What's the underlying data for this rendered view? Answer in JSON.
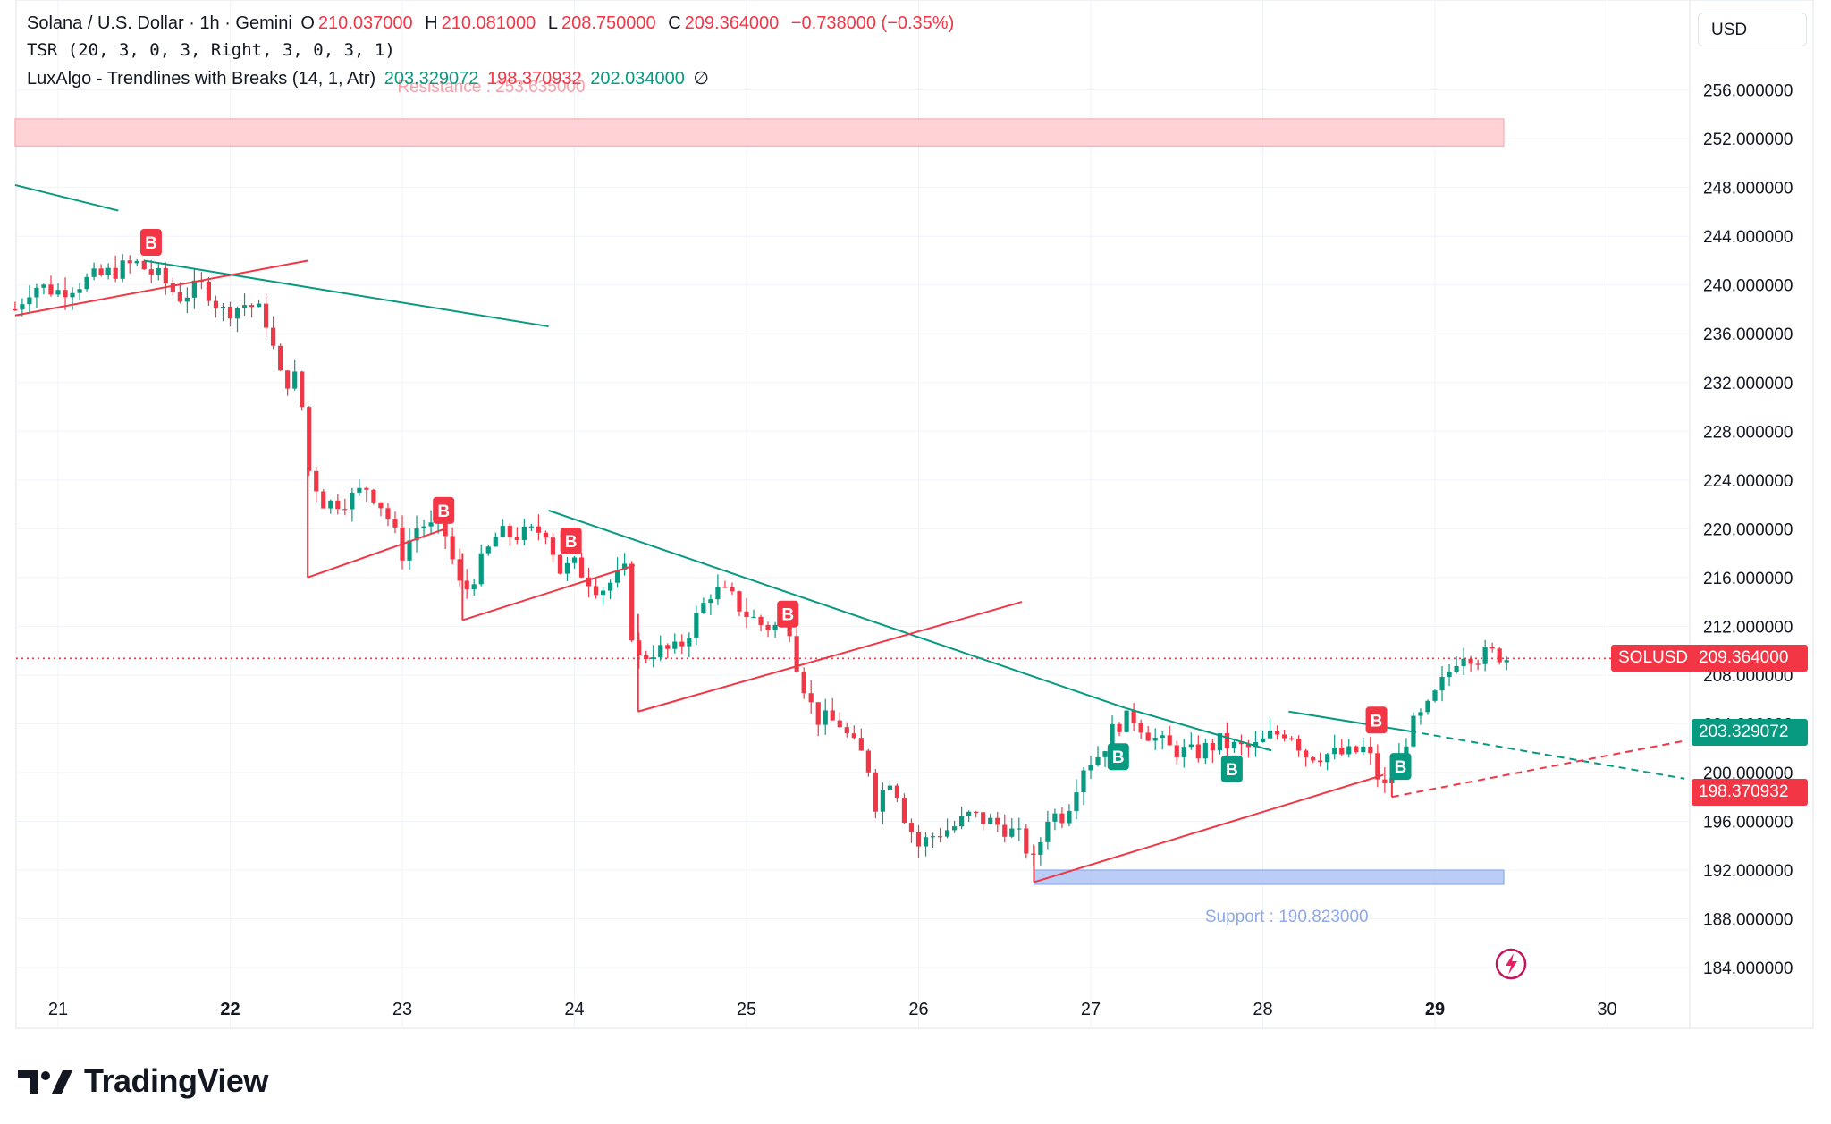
{
  "header": {
    "symbol_line": "Solana / U.S. Dollar · 1h · Gemini",
    "ohlc": {
      "o_label": "O",
      "o": "210.037000",
      "h_label": "H",
      "h": "210.081000",
      "l_label": "L",
      "l": "208.750000",
      "c_label": "C",
      "c": "209.364000",
      "change": "−0.738000 (−0.35%)"
    },
    "indicator1": "TSR (20, 3, 0, 3, Right, 3, 0, 3, 1)",
    "indicator2": {
      "name": "LuxAlgo - Trendlines with Breaks (14, 1, Atr)",
      "v1": "203.329072",
      "v2": "198.370932",
      "v3": "202.034000",
      "v4": "∅"
    }
  },
  "currency": "USD",
  "colors": {
    "up": "#089981",
    "down": "#f23645",
    "resistance_fill": "#ffcdd2",
    "support_fill": "#b3c8f5",
    "grid": "#f0f3fa"
  },
  "brand": "TradingView",
  "chart_data": {
    "type": "candlestick",
    "symbol": "SOLUSD",
    "interval": "1h",
    "ylim": [
      182,
      258
    ],
    "y_ticks": [
      "184.000000",
      "188.000000",
      "192.000000",
      "196.000000",
      "200.000000",
      "204.000000",
      "208.000000",
      "212.000000",
      "216.000000",
      "220.000000",
      "224.000000",
      "228.000000",
      "232.000000",
      "236.000000",
      "240.000000",
      "244.000000",
      "248.000000",
      "252.000000",
      "256.000000"
    ],
    "x_ticks": [
      "21",
      "22",
      "23",
      "24",
      "25",
      "26",
      "27",
      "28",
      "29",
      "30"
    ],
    "x_tick_days": [
      21,
      22,
      23,
      24,
      25,
      26,
      27,
      28,
      29,
      30
    ],
    "xlim_days": [
      20.75,
      30.45
    ],
    "last_price_label": "SOLUSD",
    "last_price": "209.364000",
    "trend_upper_label": "203.329072",
    "trend_lower_label": "198.370932",
    "resistance": {
      "label": "Resistance : 253.635000",
      "top": 253.635,
      "bottom": 251.4,
      "from_day": 20.75,
      "to_day": 29.4
    },
    "support": {
      "label": "Support : 190.823000",
      "top": 192.0,
      "bottom": 190.823,
      "from_day": 26.67,
      "to_day": 29.4
    },
    "closes_path": [
      [
        20.75,
        238.0
      ],
      [
        20.85,
        240.0
      ],
      [
        21.0,
        239.5
      ],
      [
        21.15,
        240.3
      ],
      [
        21.3,
        241.0
      ],
      [
        21.45,
        241.8
      ],
      [
        21.6,
        240.5
      ],
      [
        21.7,
        239.0
      ],
      [
        21.85,
        240.0
      ],
      [
        21.95,
        237.8
      ],
      [
        22.1,
        238.5
      ],
      [
        22.2,
        237.5
      ],
      [
        22.3,
        232.0
      ],
      [
        22.4,
        232.5
      ],
      [
        22.45,
        225.0
      ],
      [
        22.55,
        222.0
      ],
      [
        22.7,
        222.5
      ],
      [
        22.8,
        223.5
      ],
      [
        22.9,
        221.5
      ],
      [
        23.0,
        218.0
      ],
      [
        23.1,
        220.5
      ],
      [
        23.25,
        219.5
      ],
      [
        23.35,
        214.5
      ],
      [
        23.45,
        217.0
      ],
      [
        23.55,
        219.5
      ],
      [
        23.7,
        219.5
      ],
      [
        23.85,
        220.0
      ],
      [
        23.9,
        216.5
      ],
      [
        24.0,
        217.0
      ],
      [
        24.15,
        215.0
      ],
      [
        24.3,
        216.5
      ],
      [
        24.35,
        209.0
      ],
      [
        24.45,
        210.0
      ],
      [
        24.6,
        210.0
      ],
      [
        24.7,
        212.5
      ],
      [
        24.8,
        215.0
      ],
      [
        24.9,
        214.5
      ],
      [
        25.0,
        213.0
      ],
      [
        25.1,
        212.0
      ],
      [
        25.25,
        212.0
      ],
      [
        25.3,
        208.5
      ],
      [
        25.4,
        204.5
      ],
      [
        25.55,
        204.0
      ],
      [
        25.6,
        202.5
      ],
      [
        25.7,
        201.0
      ],
      [
        25.75,
        197.5
      ],
      [
        25.85,
        200.0
      ],
      [
        25.9,
        197.0
      ],
      [
        26.0,
        194.0
      ],
      [
        26.1,
        195.0
      ],
      [
        26.2,
        195.5
      ],
      [
        26.3,
        196.5
      ],
      [
        26.4,
        196.0
      ],
      [
        26.5,
        195.5
      ],
      [
        26.6,
        194.5
      ],
      [
        26.67,
        192.5
      ],
      [
        26.75,
        196.5
      ],
      [
        26.85,
        196.5
      ],
      [
        26.95,
        200.5
      ],
      [
        27.05,
        201.5
      ],
      [
        27.15,
        204.0
      ],
      [
        27.25,
        204.5
      ],
      [
        27.35,
        203.0
      ],
      [
        27.45,
        202.0
      ],
      [
        27.6,
        201.5
      ],
      [
        27.75,
        202.5
      ],
      [
        27.85,
        202.0
      ],
      [
        27.95,
        202.0
      ],
      [
        28.05,
        203.0
      ],
      [
        28.15,
        203.5
      ],
      [
        28.25,
        201.5
      ],
      [
        28.4,
        201.5
      ],
      [
        28.5,
        201.5
      ],
      [
        28.6,
        202.0
      ],
      [
        28.7,
        198.5
      ],
      [
        28.78,
        200.5
      ],
      [
        28.85,
        203.5
      ],
      [
        28.95,
        205.0
      ],
      [
        29.05,
        207.5
      ],
      [
        29.15,
        210.0
      ],
      [
        29.25,
        209.5
      ],
      [
        29.35,
        209.8
      ],
      [
        29.42,
        209.364
      ]
    ],
    "trendlines_green": [
      {
        "from": [
          20.75,
          248.2
        ],
        "to": [
          21.35,
          246.1
        ]
      },
      {
        "from": [
          21.5,
          242.0
        ],
        "to": [
          23.85,
          236.6
        ]
      },
      {
        "from": [
          23.85,
          221.5
        ],
        "to": [
          27.2,
          205.3
        ]
      },
      {
        "from": [
          27.2,
          205.3
        ],
        "to": [
          28.05,
          201.8
        ]
      },
      {
        "from": [
          28.15,
          205.0
        ],
        "to": [
          28.85,
          203.4
        ]
      }
    ],
    "trendlines_red": [
      {
        "from": [
          20.75,
          237.5
        ],
        "to": [
          22.45,
          242.0
        ]
      },
      {
        "from": [
          22.45,
          216.0
        ],
        "to": [
          23.25,
          220.0
        ]
      },
      {
        "from": [
          23.35,
          212.5
        ],
        "to": [
          24.35,
          217.0
        ]
      },
      {
        "from": [
          24.37,
          205.0
        ],
        "to": [
          26.6,
          214.0
        ]
      },
      {
        "from": [
          26.67,
          191.0
        ],
        "to": [
          28.7,
          199.8
        ]
      }
    ],
    "trend_ext_green": {
      "from": [
        28.85,
        203.4
      ],
      "to": [
        30.45,
        199.5
      ]
    },
    "trend_ext_red": {
      "from": [
        28.75,
        198.0
      ],
      "to": [
        30.45,
        202.6
      ]
    },
    "signals": [
      {
        "day": 21.54,
        "price": 243.5,
        "label": "B",
        "kind": "bear"
      },
      {
        "day": 23.24,
        "price": 221.5,
        "label": "B",
        "kind": "bear"
      },
      {
        "day": 23.98,
        "price": 219.0,
        "label": "B",
        "kind": "bear"
      },
      {
        "day": 25.24,
        "price": 213.0,
        "label": "B",
        "kind": "bear"
      },
      {
        "day": 28.66,
        "price": 204.3,
        "label": "B",
        "kind": "bear"
      },
      {
        "day": 27.16,
        "price": 201.3,
        "label": "B",
        "kind": "bull"
      },
      {
        "day": 27.82,
        "price": 200.3,
        "label": "B",
        "kind": "bull"
      },
      {
        "day": 28.8,
        "price": 200.5,
        "label": "B",
        "kind": "bull"
      }
    ]
  }
}
